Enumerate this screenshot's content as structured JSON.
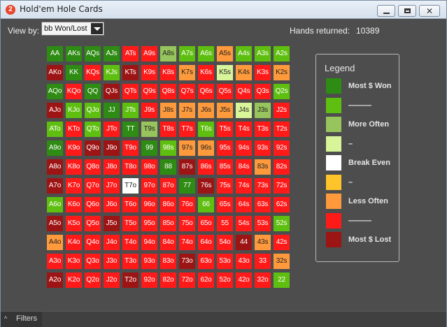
{
  "window": {
    "title": "Hold'em Hole Cards",
    "app_icon": "2"
  },
  "controls": {
    "view_by_label": "View by:",
    "view_by_value": "bb Won/Lost",
    "hands_returned_label": "Hands returned:",
    "hands_returned_value": "10389"
  },
  "colors": {
    "most_won": "#2e8b13",
    "won": "#5fbf10",
    "more_often": "#97c45c",
    "light_green": "#d8f59a",
    "break_even": "#ffffff",
    "yellow": "#ffc42a",
    "less_often": "#ff9a3c",
    "lost": "#ff1a1a",
    "most_lost": "#9d1414"
  },
  "legend": {
    "title": "Legend",
    "items": [
      {
        "label": "Most $ Won",
        "color_key": "most_won"
      },
      {
        "label": "———",
        "color_key": "won"
      },
      {
        "label": "More Often",
        "color_key": "more_often"
      },
      {
        "label": "–",
        "color_key": "light_green"
      },
      {
        "label": "Break Even",
        "color_key": "break_even"
      },
      {
        "label": "–",
        "color_key": "yellow"
      },
      {
        "label": "Less Often",
        "color_key": "less_often"
      },
      {
        "label": "———",
        "color_key": "lost"
      },
      {
        "label": "Most $ Lost",
        "color_key": "most_lost"
      }
    ]
  },
  "grid": [
    [
      [
        "AA",
        "most_won"
      ],
      [
        "AKs",
        "most_won"
      ],
      [
        "AQs",
        "most_won"
      ],
      [
        "AJs",
        "most_won"
      ],
      [
        "ATs",
        "lost"
      ],
      [
        "A9s",
        "lost"
      ],
      [
        "A8s",
        "more_often"
      ],
      [
        "A7s",
        "won"
      ],
      [
        "A6s",
        "won"
      ],
      [
        "A5s",
        "less_often"
      ],
      [
        "A4s",
        "won"
      ],
      [
        "A3s",
        "won"
      ],
      [
        "A2s",
        "won"
      ]
    ],
    [
      [
        "AKo",
        "most_lost"
      ],
      [
        "KK",
        "most_won"
      ],
      [
        "KQs",
        "lost"
      ],
      [
        "KJs",
        "won"
      ],
      [
        "KTs",
        "most_lost"
      ],
      [
        "K9s",
        "lost"
      ],
      [
        "K8s",
        "lost"
      ],
      [
        "K7s",
        "less_often"
      ],
      [
        "K6s",
        "lost"
      ],
      [
        "K5s",
        "light_green"
      ],
      [
        "K4s",
        "less_often"
      ],
      [
        "K3s",
        "lost"
      ],
      [
        "K2s",
        "less_often"
      ]
    ],
    [
      [
        "AQo",
        "most_won"
      ],
      [
        "KQo",
        "lost"
      ],
      [
        "QQ",
        "most_won"
      ],
      [
        "QJs",
        "most_lost"
      ],
      [
        "QTs",
        "lost"
      ],
      [
        "Q9s",
        "lost"
      ],
      [
        "Q8s",
        "lost"
      ],
      [
        "Q7s",
        "lost"
      ],
      [
        "Q6s",
        "lost"
      ],
      [
        "Q5s",
        "lost"
      ],
      [
        "Q4s",
        "lost"
      ],
      [
        "Q3s",
        "lost"
      ],
      [
        "Q2s",
        "won"
      ]
    ],
    [
      [
        "AJo",
        "most_lost"
      ],
      [
        "KJo",
        "won"
      ],
      [
        "QJo",
        "won"
      ],
      [
        "JJ",
        "most_won"
      ],
      [
        "JTs",
        "won"
      ],
      [
        "J9s",
        "lost"
      ],
      [
        "J8s",
        "less_often"
      ],
      [
        "J7s",
        "less_often"
      ],
      [
        "J6s",
        "less_often"
      ],
      [
        "J5s",
        "less_often"
      ],
      [
        "J4s",
        "light_green"
      ],
      [
        "J3s",
        "more_often"
      ],
      [
        "J2s",
        "lost"
      ]
    ],
    [
      [
        "ATo",
        "won"
      ],
      [
        "KTo",
        "lost"
      ],
      [
        "QTo",
        "won"
      ],
      [
        "JTo",
        "lost"
      ],
      [
        "TT",
        "most_won"
      ],
      [
        "T9s",
        "more_often"
      ],
      [
        "T8s",
        "lost"
      ],
      [
        "T7s",
        "lost"
      ],
      [
        "T6s",
        "won"
      ],
      [
        "T5s",
        "lost"
      ],
      [
        "T4s",
        "lost"
      ],
      [
        "T3s",
        "lost"
      ],
      [
        "T2s",
        "lost"
      ]
    ],
    [
      [
        "A9o",
        "most_won"
      ],
      [
        "K9o",
        "lost"
      ],
      [
        "Q9o",
        "most_lost"
      ],
      [
        "J9o",
        "most_lost"
      ],
      [
        "T9o",
        "lost"
      ],
      [
        "99",
        "most_won"
      ],
      [
        "98s",
        "won"
      ],
      [
        "97s",
        "less_often"
      ],
      [
        "96s",
        "less_often"
      ],
      [
        "95s",
        "lost"
      ],
      [
        "94s",
        "lost"
      ],
      [
        "93s",
        "lost"
      ],
      [
        "92s",
        "lost"
      ]
    ],
    [
      [
        "A8o",
        "most_lost"
      ],
      [
        "K8o",
        "lost"
      ],
      [
        "Q8o",
        "lost"
      ],
      [
        "J8o",
        "lost"
      ],
      [
        "T8o",
        "lost"
      ],
      [
        "98o",
        "lost"
      ],
      [
        "88",
        "most_won"
      ],
      [
        "87s",
        "most_lost"
      ],
      [
        "86s",
        "lost"
      ],
      [
        "85s",
        "lost"
      ],
      [
        "84s",
        "lost"
      ],
      [
        "83s",
        "less_often"
      ],
      [
        "82s",
        "lost"
      ]
    ],
    [
      [
        "A7o",
        "most_lost"
      ],
      [
        "K7o",
        "lost"
      ],
      [
        "Q7o",
        "lost"
      ],
      [
        "J7o",
        "lost"
      ],
      [
        "T7o",
        "break_even"
      ],
      [
        "97o",
        "lost"
      ],
      [
        "87o",
        "lost"
      ],
      [
        "77",
        "most_won"
      ],
      [
        "76s",
        "most_lost"
      ],
      [
        "75s",
        "lost"
      ],
      [
        "74s",
        "lost"
      ],
      [
        "73s",
        "lost"
      ],
      [
        "72s",
        "lost"
      ]
    ],
    [
      [
        "A6o",
        "won"
      ],
      [
        "K6o",
        "lost"
      ],
      [
        "Q6o",
        "lost"
      ],
      [
        "J6o",
        "lost"
      ],
      [
        "T6o",
        "lost"
      ],
      [
        "96o",
        "lost"
      ],
      [
        "86o",
        "lost"
      ],
      [
        "76o",
        "lost"
      ],
      [
        "66",
        "won"
      ],
      [
        "65s",
        "lost"
      ],
      [
        "64s",
        "lost"
      ],
      [
        "63s",
        "lost"
      ],
      [
        "62s",
        "lost"
      ]
    ],
    [
      [
        "A5o",
        "most_lost"
      ],
      [
        "K5o",
        "lost"
      ],
      [
        "Q5o",
        "lost"
      ],
      [
        "J5o",
        "most_lost"
      ],
      [
        "T5o",
        "lost"
      ],
      [
        "95o",
        "lost"
      ],
      [
        "85o",
        "lost"
      ],
      [
        "75o",
        "lost"
      ],
      [
        "65o",
        "lost"
      ],
      [
        "55",
        "lost"
      ],
      [
        "54s",
        "lost"
      ],
      [
        "53s",
        "lost"
      ],
      [
        "52s",
        "won"
      ]
    ],
    [
      [
        "A4o",
        "less_often"
      ],
      [
        "K4o",
        "lost"
      ],
      [
        "Q4o",
        "lost"
      ],
      [
        "J4o",
        "lost"
      ],
      [
        "T4o",
        "lost"
      ],
      [
        "94o",
        "lost"
      ],
      [
        "84o",
        "lost"
      ],
      [
        "74o",
        "lost"
      ],
      [
        "64o",
        "lost"
      ],
      [
        "54o",
        "lost"
      ],
      [
        "44",
        "most_lost"
      ],
      [
        "43s",
        "less_often"
      ],
      [
        "42s",
        "lost"
      ]
    ],
    [
      [
        "A3o",
        "lost"
      ],
      [
        "K3o",
        "lost"
      ],
      [
        "Q3o",
        "lost"
      ],
      [
        "J3o",
        "lost"
      ],
      [
        "T3o",
        "lost"
      ],
      [
        "93o",
        "lost"
      ],
      [
        "83o",
        "lost"
      ],
      [
        "73o",
        "most_lost"
      ],
      [
        "63o",
        "lost"
      ],
      [
        "53o",
        "lost"
      ],
      [
        "43o",
        "lost"
      ],
      [
        "33",
        "lost"
      ],
      [
        "32s",
        "less_often"
      ]
    ],
    [
      [
        "A2o",
        "most_lost"
      ],
      [
        "K2o",
        "lost"
      ],
      [
        "Q2o",
        "lost"
      ],
      [
        "J2o",
        "lost"
      ],
      [
        "T2o",
        "most_lost"
      ],
      [
        "92o",
        "lost"
      ],
      [
        "82o",
        "lost"
      ],
      [
        "72o",
        "lost"
      ],
      [
        "62o",
        "lost"
      ],
      [
        "52o",
        "lost"
      ],
      [
        "42o",
        "lost"
      ],
      [
        "32o",
        "lost"
      ],
      [
        "22",
        "won"
      ]
    ]
  ],
  "status": {
    "filters_label": "Filters",
    "filters_arrow": "^"
  }
}
